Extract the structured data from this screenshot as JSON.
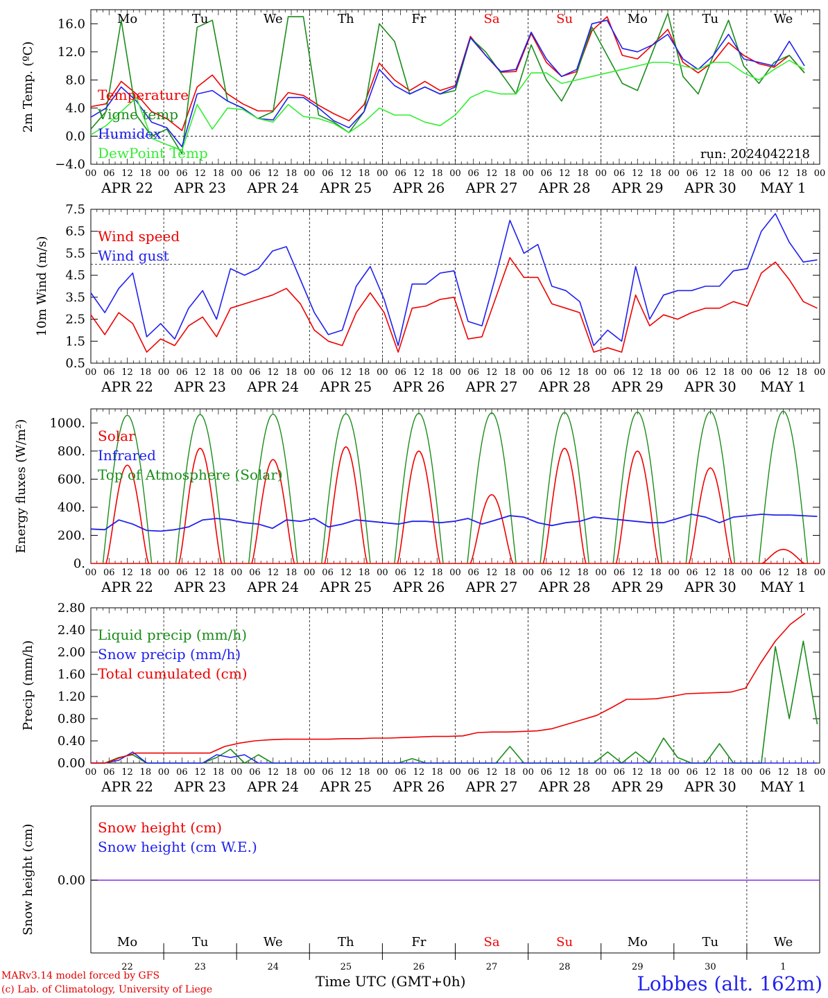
{
  "footer": {
    "credit_line1": "MARv3.14 model forced by GFS",
    "credit_line2": "(c) Lab. of Climatology, University of Liege",
    "x_axis_title": "Time UTC (GMT+0h)",
    "location": "Lobbes (alt. 162m)",
    "run_label": "run: 2024042218"
  },
  "colors": {
    "red": "#ee0000",
    "green": "#1a8c1a",
    "blue": "#2020ee",
    "lightgreen": "#33ee33",
    "purple": "#8a2be2"
  },
  "chart_data": {
    "days": [
      "APR 22",
      "APR 23",
      "APR 24",
      "APR 25",
      "APR 26",
      "APR 27",
      "APR 28",
      "APR 29",
      "APR 30",
      "MAY 1"
    ],
    "weekdays": [
      "Mo",
      "Tu",
      "We",
      "Th",
      "Fr",
      "Sa",
      "Su",
      "Mo",
      "Tu",
      "We"
    ],
    "weekday_colors": [
      "black",
      "black",
      "black",
      "black",
      "black",
      "red",
      "red",
      "black",
      "black",
      "black"
    ],
    "day_numbers": [
      "22",
      "23",
      "24",
      "25",
      "26",
      "27",
      "28",
      "29",
      "30",
      "1"
    ],
    "hour_ticks": [
      "00",
      "06",
      "12",
      "18"
    ],
    "hour_end_label": "00",
    "x_step_hours": 6,
    "panels": [
      {
        "type": "line",
        "id": "temp",
        "ylabel": "2m Temp. (ºC)",
        "ylim": [
          -4,
          18
        ],
        "yticks": [
          "16.0",
          "12.0",
          "8.0",
          "4.0",
          "0.0",
          "−4.0"
        ],
        "ytick_values": [
          16,
          12,
          8,
          4,
          0,
          -4
        ],
        "dashed_y": 0,
        "legend": [
          "Temperature",
          "Vigne temp",
          "Humidex",
          "DewPoint Temp"
        ],
        "series": [
          {
            "name": "Temperature",
            "color": "red",
            "values": [
              4.2,
              4.6,
              7.8,
              6.0,
              3.5,
              2.5,
              0.8,
              7.0,
              8.7,
              6.0,
              4.6,
              3.6,
              3.6,
              6.2,
              5.8,
              4.4,
              3.2,
              2.2,
              4.5,
              10.4,
              8.0,
              6.5,
              7.8,
              6.5,
              7.2,
              14.2,
              11.5,
              9.1,
              9.2,
              14.6,
              10.5,
              8.5,
              9.2,
              15.0,
              17.0,
              11.5,
              11.0,
              13.0,
              15.2,
              10.5,
              9.0,
              10.6,
              13.3,
              11.5,
              10.3,
              9.8,
              11.5,
              9.0
            ]
          },
          {
            "name": "Vigne temp",
            "color": "green",
            "values": [
              1.0,
              3.5,
              16.5,
              3.0,
              0.0,
              1.0,
              -2.5,
              15.5,
              16.5,
              5.0,
              4.0,
              2.5,
              3.5,
              17.0,
              17.0,
              3.0,
              2.0,
              0.5,
              3.5,
              16.0,
              13.5,
              6.0,
              7.0,
              6.0,
              6.5,
              14.0,
              12.0,
              9.0,
              6.0,
              13.0,
              8.0,
              5.0,
              9.0,
              15.5,
              11.5,
              7.5,
              6.5,
              12.0,
              17.5,
              8.5,
              6.0,
              11.5,
              16.5,
              10.0,
              7.5,
              10.5,
              11.5,
              9.0
            ]
          },
          {
            "name": "Humidex",
            "color": "blue",
            "values": [
              2.7,
              4.0,
              7.0,
              5.0,
              2.0,
              1.2,
              -1.5,
              6.0,
              6.5,
              5.0,
              4.0,
              2.5,
              2.3,
              5.5,
              5.5,
              4.0,
              2.2,
              1.2,
              3.5,
              9.5,
              7.2,
              6.0,
              7.0,
              6.0,
              7.0,
              14.0,
              11.5,
              9.2,
              9.5,
              14.8,
              11.0,
              8.5,
              9.5,
              16.0,
              16.5,
              12.5,
              12.0,
              13.0,
              14.5,
              11.0,
              9.5,
              11.5,
              14.5,
              11.0,
              10.5,
              10.0,
              13.5,
              10.0
            ]
          },
          {
            "name": "DewPoint Temp",
            "color": "lightgreen",
            "values": [
              0.2,
              1.5,
              3.5,
              5.5,
              -0.3,
              -1.2,
              -2.0,
              4.5,
              1.0,
              4.0,
              3.8,
              2.5,
              2.0,
              4.5,
              2.8,
              2.5,
              1.8,
              0.5,
              2.0,
              4.0,
              3.0,
              3.0,
              2.0,
              1.5,
              3.0,
              5.5,
              6.5,
              6.0,
              6.0,
              9.0,
              9.0,
              7.5,
              8.0,
              8.5,
              9.0,
              9.5,
              10.0,
              10.5,
              10.5,
              10.0,
              9.5,
              10.5,
              10.5,
              9.0,
              8.0,
              9.5,
              10.8,
              9.5
            ]
          }
        ]
      },
      {
        "type": "line",
        "id": "wind",
        "ylabel": "10m Wind (m/s)",
        "ylim": [
          0.5,
          7.5
        ],
        "yticks": [
          "7.5",
          "6.5",
          "5.5",
          "4.5",
          "3.5",
          "2.5",
          "1.5",
          "0.5"
        ],
        "ytick_values": [
          7.5,
          6.5,
          5.5,
          4.5,
          3.5,
          2.5,
          1.5,
          0.5
        ],
        "dashed_y": 5.0,
        "legend": [
          "Wind speed",
          "Wind gust"
        ],
        "series": [
          {
            "name": "Wind speed",
            "color": "red",
            "values": [
              2.7,
              1.8,
              2.8,
              2.3,
              1.0,
              1.6,
              1.3,
              2.2,
              2.6,
              1.7,
              3.0,
              3.2,
              3.4,
              3.6,
              3.9,
              3.2,
              2.0,
              1.5,
              1.3,
              2.8,
              3.7,
              2.8,
              1.0,
              3.0,
              3.1,
              3.4,
              3.5,
              1.6,
              1.7,
              3.5,
              5.3,
              4.4,
              4.4,
              3.2,
              3.0,
              2.8,
              1.0,
              1.2,
              1.0,
              3.6,
              2.2,
              2.7,
              2.5,
              2.8,
              3.0,
              3.0,
              3.3,
              3.1,
              4.6,
              5.1,
              4.3,
              3.3,
              3.0
            ]
          },
          {
            "name": "Wind gust",
            "color": "blue",
            "values": [
              3.7,
              2.8,
              3.9,
              4.6,
              1.7,
              2.3,
              1.6,
              3.0,
              3.8,
              2.5,
              4.8,
              4.5,
              4.8,
              5.6,
              5.8,
              4.3,
              2.8,
              1.8,
              2.0,
              4.0,
              4.9,
              3.4,
              1.3,
              4.1,
              4.1,
              4.6,
              4.7,
              2.4,
              2.2,
              4.5,
              7.0,
              5.5,
              5.9,
              4.0,
              3.8,
              3.3,
              1.3,
              2.0,
              1.5,
              4.9,
              2.5,
              3.6,
              3.8,
              3.8,
              4.0,
              4.0,
              4.7,
              4.8,
              6.5,
              7.3,
              6.0,
              5.1,
              5.2
            ]
          }
        ]
      },
      {
        "type": "line",
        "id": "flux",
        "ylabel": "Energy fluxes (W/m²)",
        "ylim": [
          0,
          1100
        ],
        "yticks": [
          "1000.",
          "800.",
          "600.",
          "400.",
          "200.",
          "0."
        ],
        "ytick_values": [
          1000,
          800,
          600,
          400,
          200,
          0
        ],
        "legend": [
          "Solar",
          "Infrared",
          "Top of Atmosphere (Solar)"
        ],
        "toa_peak": [
          1055,
          1060,
          1063,
          1066,
          1069,
          1072,
          1075,
          1078,
          1081,
          1084
        ],
        "solar_peak": [
          700,
          820,
          740,
          830,
          800,
          490,
          820,
          800,
          680,
          100
        ],
        "infrared": [
          245,
          240,
          310,
          280,
          235,
          230,
          240,
          260,
          310,
          320,
          310,
          290,
          280,
          250,
          310,
          300,
          320,
          260,
          280,
          310,
          300,
          290,
          280,
          300,
          300,
          290,
          300,
          320,
          280,
          310,
          340,
          330,
          290,
          270,
          290,
          300,
          330,
          320,
          310,
          300,
          290,
          290,
          320,
          350,
          330,
          290,
          330,
          340,
          350,
          345,
          345,
          340,
          335
        ],
        "series_colors": [
          "red",
          "blue",
          "green"
        ]
      },
      {
        "type": "line",
        "id": "precip",
        "ylabel": "Precip (mm/h)",
        "ylim": [
          0,
          2.8
        ],
        "yticks": [
          "2.80",
          "2.40",
          "2.00",
          "1.60",
          "1.20",
          "0.80",
          "0.40",
          "0.00"
        ],
        "ytick_values": [
          2.8,
          2.4,
          2.0,
          1.6,
          1.2,
          0.8,
          0.4,
          0.0
        ],
        "legend": [
          "Liquid precip (mm/h)",
          "Snow precip (mm/h)",
          "Total cumulated (cm)"
        ],
        "series": [
          {
            "name": "Liquid precip (mm/h)",
            "color": "green",
            "values": [
              0,
              0,
              0.1,
              0.15,
              0,
              0,
              0,
              0,
              0,
              0.1,
              0.25,
              0,
              0.15,
              0,
              0,
              0,
              0,
              0,
              0,
              0,
              0,
              0,
              0,
              0.08,
              0,
              0,
              0,
              0,
              0,
              0,
              0.3,
              0,
              0,
              0,
              0,
              0,
              0,
              0.2,
              0,
              0.2,
              0,
              0.45,
              0.1,
              0,
              0,
              0.35,
              0,
              0,
              0,
              2.1,
              0.8,
              2.2,
              0.7
            ]
          },
          {
            "name": "Snow precip (mm/h)",
            "color": "blue",
            "values": [
              0,
              0,
              0.05,
              0.2,
              0,
              0,
              0,
              0,
              0,
              0.15,
              0.1,
              0.15,
              0,
              0,
              0,
              0,
              0,
              0,
              0,
              0,
              0,
              0,
              0,
              0,
              0,
              0,
              0,
              0,
              0,
              0,
              0,
              0,
              0,
              0,
              0,
              0,
              0,
              0,
              0,
              0,
              0,
              0,
              0,
              0,
              0,
              0,
              0,
              0,
              0,
              0,
              0,
              0,
              0
            ]
          },
          {
            "name": "Total cumulated (cm)",
            "color": "red",
            "values": [
              0,
              0,
              0.1,
              0.18,
              0.18,
              0.18,
              0.18,
              0.18,
              0.18,
              0.3,
              0.36,
              0.4,
              0.42,
              0.43,
              0.43,
              0.43,
              0.43,
              0.44,
              0.44,
              0.45,
              0.45,
              0.46,
              0.47,
              0.48,
              0.48,
              0.49,
              0.55,
              0.56,
              0.56,
              0.57,
              0.58,
              0.62,
              0.7,
              0.78,
              0.86,
              1.0,
              1.15,
              1.15,
              1.16,
              1.2,
              1.25,
              1.26,
              1.27,
              1.28,
              1.35,
              1.8,
              2.2,
              2.5,
              2.7
            ]
          }
        ]
      },
      {
        "type": "line",
        "id": "snow",
        "ylabel": "Snow height (cm)",
        "yticks": [
          "0.00"
        ],
        "legend": [
          "Snow height (cm)",
          "Snow height (cm W.E.)"
        ],
        "value": 0.0
      }
    ]
  }
}
